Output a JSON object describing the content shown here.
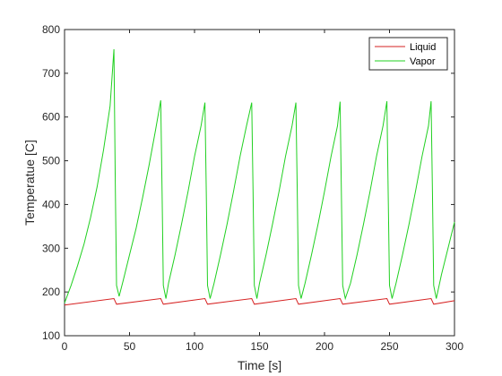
{
  "chart_data": {
    "type": "line",
    "title": "",
    "xlabel": "Time [s]",
    "ylabel": "Temperatue [C]",
    "xlim": [
      0,
      300
    ],
    "ylim": [
      100,
      800
    ],
    "xticks": [
      0,
      50,
      100,
      150,
      200,
      250,
      300
    ],
    "yticks": [
      100,
      200,
      300,
      400,
      500,
      600,
      700,
      800
    ],
    "grid": false,
    "legend_position": "top-right",
    "series": [
      {
        "name": "Liquid",
        "color": "#d62020",
        "x": [
          0,
          38,
          40,
          74,
          76,
          108,
          110,
          144,
          146,
          178,
          180,
          212,
          214,
          248,
          250,
          282,
          284,
          300
        ],
        "y": [
          170,
          185,
          172,
          185,
          172,
          185,
          172,
          185,
          172,
          185,
          172,
          185,
          172,
          185,
          172,
          185,
          172,
          180
        ]
      },
      {
        "name": "Vapor",
        "color": "#20d020",
        "x": [
          0,
          5,
          10,
          15,
          20,
          25,
          30,
          35,
          38,
          39,
          40,
          42,
          45,
          50,
          55,
          60,
          65,
          70,
          74,
          75,
          76,
          78,
          80,
          85,
          90,
          95,
          100,
          105,
          108,
          109,
          110,
          112,
          115,
          120,
          125,
          130,
          135,
          140,
          144,
          145,
          146,
          148,
          150,
          155,
          160,
          165,
          170,
          175,
          178,
          179,
          180,
          182,
          185,
          190,
          195,
          200,
          205,
          210,
          212,
          213,
          214,
          216,
          220,
          225,
          230,
          235,
          240,
          245,
          248,
          249,
          250,
          252,
          255,
          260,
          265,
          270,
          275,
          280,
          282,
          283,
          284,
          286,
          290,
          295,
          300
        ],
        "y": [
          175,
          215,
          260,
          310,
          370,
          440,
          525,
          625,
          755,
          450,
          215,
          190,
          225,
          285,
          345,
          415,
          490,
          570,
          638,
          430,
          215,
          185,
          220,
          285,
          355,
          430,
          510,
          580,
          633,
          430,
          215,
          185,
          220,
          285,
          355,
          430,
          510,
          580,
          633,
          430,
          215,
          185,
          220,
          285,
          355,
          430,
          510,
          580,
          633,
          430,
          215,
          185,
          220,
          285,
          355,
          430,
          510,
          580,
          635,
          430,
          215,
          185,
          220,
          285,
          355,
          430,
          510,
          580,
          636,
          430,
          215,
          185,
          220,
          285,
          355,
          430,
          510,
          580,
          636,
          430,
          215,
          185,
          240,
          300,
          360
        ]
      }
    ]
  }
}
